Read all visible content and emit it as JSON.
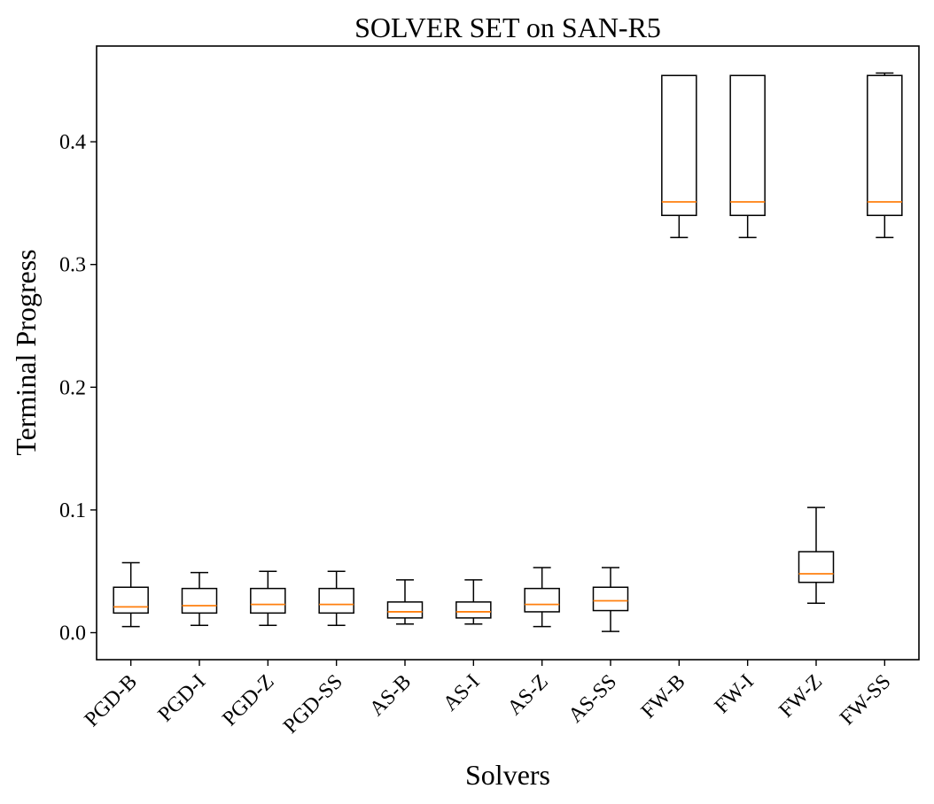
{
  "chart_data": {
    "type": "boxplot",
    "title": "SOLVER SET on SAN-R5",
    "xlabel": "Solvers",
    "ylabel": "Terminal Progress",
    "ylim": [
      -0.022,
      0.478
    ],
    "yticks": [
      0.0,
      0.1,
      0.2,
      0.3,
      0.4
    ],
    "ytick_labels": [
      "0.0",
      "0.1",
      "0.2",
      "0.3",
      "0.4"
    ],
    "categories": [
      "PGD-B",
      "PGD-I",
      "PGD-Z",
      "PGD-SS",
      "AS-B",
      "AS-I",
      "AS-Z",
      "AS-SS",
      "FW-B",
      "FW-I",
      "FW-Z",
      "FW-SS"
    ],
    "boxes": [
      {
        "label": "PGD-B",
        "whislo": 0.005,
        "q1": 0.016,
        "med": 0.021,
        "q3": 0.037,
        "whishi": 0.057
      },
      {
        "label": "PGD-I",
        "whislo": 0.006,
        "q1": 0.016,
        "med": 0.022,
        "q3": 0.036,
        "whishi": 0.049
      },
      {
        "label": "PGD-Z",
        "whislo": 0.006,
        "q1": 0.016,
        "med": 0.023,
        "q3": 0.036,
        "whishi": 0.05
      },
      {
        "label": "PGD-SS",
        "whislo": 0.006,
        "q1": 0.016,
        "med": 0.023,
        "q3": 0.036,
        "whishi": 0.05
      },
      {
        "label": "AS-B",
        "whislo": 0.007,
        "q1": 0.012,
        "med": 0.017,
        "q3": 0.025,
        "whishi": 0.043
      },
      {
        "label": "AS-I",
        "whislo": 0.007,
        "q1": 0.012,
        "med": 0.017,
        "q3": 0.025,
        "whishi": 0.043
      },
      {
        "label": "AS-Z",
        "whislo": 0.005,
        "q1": 0.017,
        "med": 0.023,
        "q3": 0.036,
        "whishi": 0.053
      },
      {
        "label": "AS-SS",
        "whislo": 0.001,
        "q1": 0.018,
        "med": 0.026,
        "q3": 0.037,
        "whishi": 0.053
      },
      {
        "label": "FW-B",
        "whislo": 0.322,
        "q1": 0.34,
        "med": 0.351,
        "q3": 0.454,
        "whishi": 0.454
      },
      {
        "label": "FW-I",
        "whislo": 0.322,
        "q1": 0.34,
        "med": 0.351,
        "q3": 0.454,
        "whishi": 0.454
      },
      {
        "label": "FW-Z",
        "whislo": 0.024,
        "q1": 0.041,
        "med": 0.048,
        "q3": 0.066,
        "whishi": 0.102
      },
      {
        "label": "FW-SS",
        "whislo": 0.322,
        "q1": 0.34,
        "med": 0.351,
        "q3": 0.454,
        "whishi": 0.456
      }
    ],
    "colors": {
      "box": "#000000",
      "median": "#ff7f0e",
      "background": "#ffffff"
    },
    "grid": false,
    "legend": "none"
  }
}
